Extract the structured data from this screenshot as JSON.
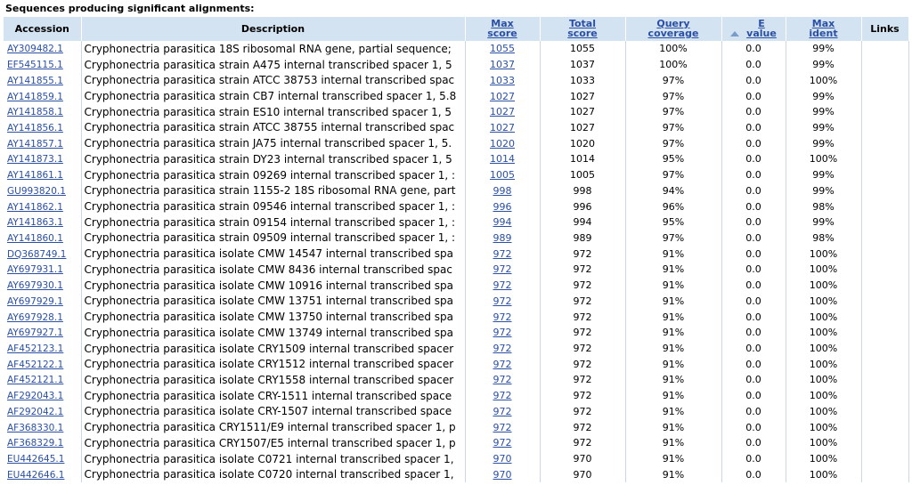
{
  "title": "Sequences producing significant alignments:",
  "headers": {
    "accession": "Accession",
    "description": "Description",
    "max_score_1": "Max",
    "max_score_2": "score",
    "total_score_1": "Total",
    "total_score_2": "score",
    "query_coverage_1": "Query",
    "query_coverage_2": "coverage",
    "evalue_1": "E",
    "evalue_2": "value",
    "max_ident_1": "Max",
    "max_ident_2": "ident",
    "links": "Links"
  },
  "rows": [
    {
      "acc": "AY309482.1",
      "desc": "Cryphonectria parasitica 18S ribosomal RNA gene, partial sequence;",
      "max": "1055",
      "total": "1055",
      "cov": "100%",
      "e": "0.0",
      "ident": "99%"
    },
    {
      "acc": "EF545115.1",
      "desc": "Cryphonectria parasitica strain A475 internal transcribed spacer 1, 5",
      "max": "1037",
      "total": "1037",
      "cov": "100%",
      "e": "0.0",
      "ident": "99%"
    },
    {
      "acc": "AY141855.1",
      "desc": "Cryphonectria parasitica strain ATCC 38753 internal transcribed spac",
      "max": "1033",
      "total": "1033",
      "cov": "97%",
      "e": "0.0",
      "ident": "100%"
    },
    {
      "acc": "AY141859.1",
      "desc": "Cryphonectria parasitica strain CB7 internal transcribed spacer 1, 5.8",
      "max": "1027",
      "total": "1027",
      "cov": "97%",
      "e": "0.0",
      "ident": "99%"
    },
    {
      "acc": "AY141858.1",
      "desc": "Cryphonectria parasitica strain ES10 internal transcribed spacer 1, 5",
      "max": "1027",
      "total": "1027",
      "cov": "97%",
      "e": "0.0",
      "ident": "99%"
    },
    {
      "acc": "AY141856.1",
      "desc": "Cryphonectria parasitica strain ATCC 38755 internal transcribed spac",
      "max": "1027",
      "total": "1027",
      "cov": "97%",
      "e": "0.0",
      "ident": "99%"
    },
    {
      "acc": "AY141857.1",
      "desc": "Cryphonectria parasitica strain JA75 internal transcribed spacer 1, 5.",
      "max": "1020",
      "total": "1020",
      "cov": "97%",
      "e": "0.0",
      "ident": "99%"
    },
    {
      "acc": "AY141873.1",
      "desc": "Cryphonectria parasitica strain DY23 internal transcribed spacer 1, 5",
      "max": "1014",
      "total": "1014",
      "cov": "95%",
      "e": "0.0",
      "ident": "100%"
    },
    {
      "acc": "AY141861.1",
      "desc": "Cryphonectria parasitica strain 09269 internal transcribed spacer 1, :",
      "max": "1005",
      "total": "1005",
      "cov": "97%",
      "e": "0.0",
      "ident": "99%"
    },
    {
      "acc": "GU993820.1",
      "desc": "Cryphonectria parasitica strain 1155-2 18S ribosomal RNA gene, part",
      "max": "998",
      "total": "998",
      "cov": "94%",
      "e": "0.0",
      "ident": "99%"
    },
    {
      "acc": "AY141862.1",
      "desc": "Cryphonectria parasitica strain 09546 internal transcribed spacer 1, :",
      "max": "996",
      "total": "996",
      "cov": "96%",
      "e": "0.0",
      "ident": "98%"
    },
    {
      "acc": "AY141863.1",
      "desc": "Cryphonectria parasitica strain 09154 internal transcribed spacer 1, :",
      "max": "994",
      "total": "994",
      "cov": "95%",
      "e": "0.0",
      "ident": "99%"
    },
    {
      "acc": "AY141860.1",
      "desc": "Cryphonectria parasitica strain 09509 internal transcribed spacer 1, :",
      "max": "989",
      "total": "989",
      "cov": "97%",
      "e": "0.0",
      "ident": "98%"
    },
    {
      "acc": "DQ368749.1",
      "desc": "Cryphonectria parasitica isolate CMW 14547 internal transcribed spa",
      "max": "972",
      "total": "972",
      "cov": "91%",
      "e": "0.0",
      "ident": "100%"
    },
    {
      "acc": "AY697931.1",
      "desc": "Cryphonectria parasitica isolate CMW 8436 internal transcribed spac",
      "max": "972",
      "total": "972",
      "cov": "91%",
      "e": "0.0",
      "ident": "100%"
    },
    {
      "acc": "AY697930.1",
      "desc": "Cryphonectria parasitica isolate CMW 10916 internal transcribed spa",
      "max": "972",
      "total": "972",
      "cov": "91%",
      "e": "0.0",
      "ident": "100%"
    },
    {
      "acc": "AY697929.1",
      "desc": "Cryphonectria parasitica isolate CMW 13751 internal transcribed spa",
      "max": "972",
      "total": "972",
      "cov": "91%",
      "e": "0.0",
      "ident": "100%"
    },
    {
      "acc": "AY697928.1",
      "desc": "Cryphonectria parasitica isolate CMW 13750 internal transcribed spa",
      "max": "972",
      "total": "972",
      "cov": "91%",
      "e": "0.0",
      "ident": "100%"
    },
    {
      "acc": "AY697927.1",
      "desc": "Cryphonectria parasitica isolate CMW 13749 internal transcribed spa",
      "max": "972",
      "total": "972",
      "cov": "91%",
      "e": "0.0",
      "ident": "100%"
    },
    {
      "acc": "AF452123.1",
      "desc": "Cryphonectria parasitica isolate CRY1509 internal transcribed spacer",
      "max": "972",
      "total": "972",
      "cov": "91%",
      "e": "0.0",
      "ident": "100%"
    },
    {
      "acc": "AF452122.1",
      "desc": "Cryphonectria parasitica isolate CRY1512 internal transcribed spacer",
      "max": "972",
      "total": "972",
      "cov": "91%",
      "e": "0.0",
      "ident": "100%"
    },
    {
      "acc": "AF452121.1",
      "desc": "Cryphonectria parasitica isolate CRY1558 internal transcribed spacer",
      "max": "972",
      "total": "972",
      "cov": "91%",
      "e": "0.0",
      "ident": "100%"
    },
    {
      "acc": "AF292043.1",
      "desc": "Cryphonectria parasitica isolate CRY-1511 internal transcribed space",
      "max": "972",
      "total": "972",
      "cov": "91%",
      "e": "0.0",
      "ident": "100%"
    },
    {
      "acc": "AF292042.1",
      "desc": "Cryphonectria parasitica isolate CRY-1507 internal transcribed space",
      "max": "972",
      "total": "972",
      "cov": "91%",
      "e": "0.0",
      "ident": "100%"
    },
    {
      "acc": "AF368330.1",
      "desc": "Cryphonectria parasitica CRY1511/E9 internal transcribed spacer 1, p",
      "max": "972",
      "total": "972",
      "cov": "91%",
      "e": "0.0",
      "ident": "100%"
    },
    {
      "acc": "AF368329.1",
      "desc": "Cryphonectria parasitica CRY1507/E5 internal transcribed spacer 1, p",
      "max": "972",
      "total": "972",
      "cov": "91%",
      "e": "0.0",
      "ident": "100%"
    },
    {
      "acc": "EU442645.1",
      "desc": "Cryphonectria parasitica isolate C0721 internal transcribed spacer 1,",
      "max": "970",
      "total": "970",
      "cov": "91%",
      "e": "0.0",
      "ident": "100%"
    },
    {
      "acc": "EU442646.1",
      "desc": "Cryphonectria parasitica isolate C0720 internal transcribed spacer 1,",
      "max": "970",
      "total": "970",
      "cov": "91%",
      "e": "0.0",
      "ident": "100%"
    }
  ],
  "colors": {
    "header_bg": "#d4e3f2",
    "link": "#2a4fa3",
    "divider": "#c9d7e8"
  },
  "icons": {
    "sort_indicator": "sort-ascending-triangle-icon"
  }
}
